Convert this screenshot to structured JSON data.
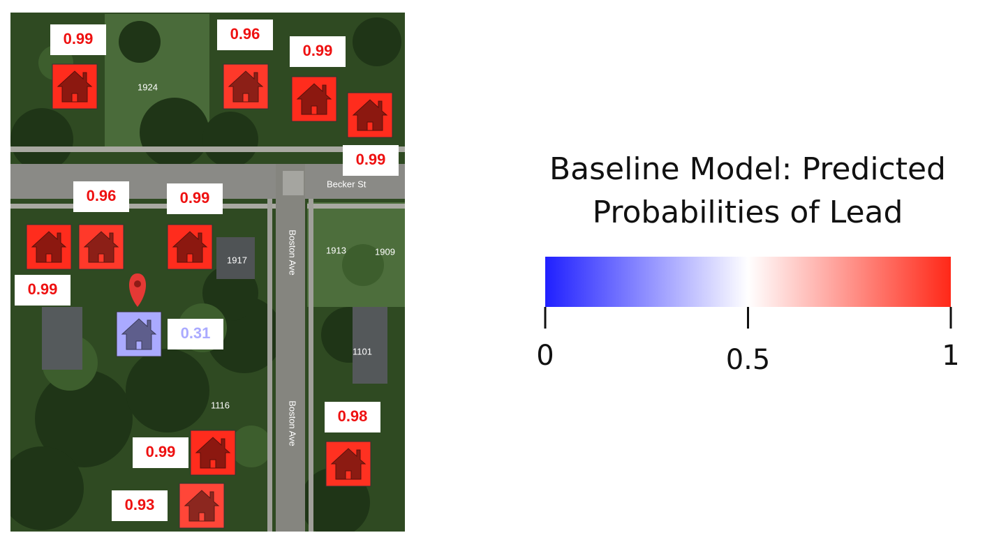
{
  "map": {
    "labels": [
      "1924",
      "Becker St",
      "Boston Ave",
      "Boston Ave",
      "1917",
      "1913",
      "1909",
      "1101",
      "1116"
    ],
    "houses": [
      {
        "probability": 0.99
      },
      {
        "probability": 0.96
      },
      {
        "probability": 0.99
      },
      {
        "probability": 0.99
      },
      {
        "probability": 0.96
      },
      {
        "probability": 0.99
      },
      {
        "probability": 0.99
      },
      {
        "probability": 0.31
      },
      {
        "probability": 0.99
      },
      {
        "probability": 0.98
      },
      {
        "probability": 0.93
      }
    ]
  },
  "legend": {
    "title": "Baseline Model: Predicted Probabilities of Lead",
    "range": [
      0,
      1
    ],
    "ticks": [
      0,
      0.5,
      1
    ]
  }
}
